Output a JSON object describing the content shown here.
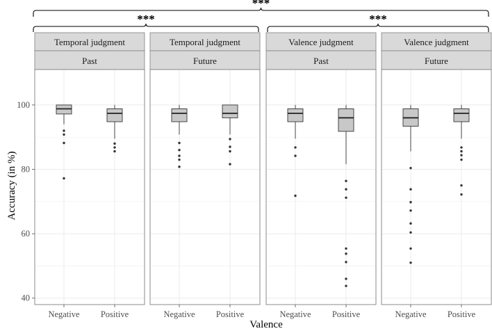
{
  "chart_data": {
    "type": "boxplot",
    "ylabel": "Accuracy (in %)",
    "xlabel": "Valence",
    "ylim": [
      38,
      111
    ],
    "yticks": [
      40,
      60,
      80,
      100
    ],
    "categories": [
      "Negative",
      "Positive"
    ],
    "colors": {
      "box_fill": "#c8c8c8",
      "strip_fill": "#d9d9d9",
      "border": "#7f7f7f",
      "grid": "#ebebeb"
    },
    "panels": [
      {
        "strip_top": "Temporal judgment",
        "strip_bottom": "Past",
        "boxes": [
          {
            "category": "Negative",
            "lower_whisker": 94,
            "q1": 97.2,
            "median": 98.8,
            "q3": 100,
            "upper_whisker": 100,
            "outliers": [
              92,
              90.8,
              88.2,
              77.2
            ]
          },
          {
            "category": "Positive",
            "lower_whisker": 89.5,
            "q1": 94.8,
            "median": 97.4,
            "q3": 98.8,
            "upper_whisker": 100,
            "outliers": [
              88,
              86.8,
              85.6
            ]
          }
        ]
      },
      {
        "strip_top": "Temporal judgment",
        "strip_bottom": "Future",
        "boxes": [
          {
            "category": "Negative",
            "lower_whisker": 90.8,
            "q1": 94.8,
            "median": 97.4,
            "q3": 98.8,
            "upper_whisker": 100,
            "outliers": [
              88.2,
              86,
              84.2,
              83,
              80.8
            ]
          },
          {
            "category": "Positive",
            "lower_whisker": 90.8,
            "q1": 96,
            "median": 97.4,
            "q3": 100,
            "upper_whisker": 100,
            "outliers": [
              89.4,
              87,
              85.6,
              81.6
            ]
          }
        ]
      },
      {
        "strip_top": "Valence judgment",
        "strip_bottom": "Past",
        "boxes": [
          {
            "category": "Negative",
            "lower_whisker": 89.5,
            "q1": 94.8,
            "median": 97.4,
            "q3": 98.8,
            "upper_whisker": 100,
            "outliers": [
              86.8,
              84.2,
              71.8
            ]
          },
          {
            "category": "Positive",
            "lower_whisker": 81.6,
            "q1": 91.8,
            "median": 96,
            "q3": 98.8,
            "upper_whisker": 100,
            "outliers": [
              76.4,
              73.8,
              71.2,
              55.4,
              53.8,
              51.2,
              46,
              43.8
            ]
          }
        ]
      },
      {
        "strip_top": "Valence judgment",
        "strip_bottom": "Future",
        "boxes": [
          {
            "category": "Negative",
            "lower_whisker": 85.6,
            "q1": 93.4,
            "median": 96,
            "q3": 98.8,
            "upper_whisker": 100,
            "outliers": [
              80.4,
              73.8,
              69.8,
              67.2,
              63.2,
              60.4,
              55.4,
              51
            ]
          },
          {
            "category": "Positive",
            "lower_whisker": 89.5,
            "q1": 94.8,
            "median": 97.4,
            "q3": 98.8,
            "upper_whisker": 100,
            "outliers": [
              86.8,
              85.6,
              84.4,
              83,
              75,
              72.2
            ]
          }
        ]
      }
    ],
    "significance": [
      {
        "label": "***",
        "level": "top",
        "span": "all panels"
      },
      {
        "label": "***",
        "level": "second",
        "span": "temporal judgment panels"
      },
      {
        "label": "***",
        "level": "second",
        "span": "valence judgment panels"
      }
    ]
  }
}
